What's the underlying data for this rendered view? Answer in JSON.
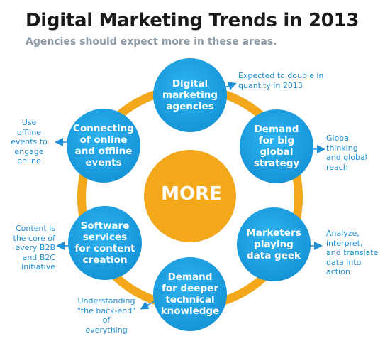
{
  "title": "Digital Marketing Trends in 2013",
  "subtitle": "Agencies should expect more in these areas.",
  "center_label": "MORE",
  "colors": {
    "ring": "#f3a81c",
    "center": "#f3a81c",
    "node": "#1ba3e6",
    "note_text": "#1f8fd6",
    "arrow": "#1f8fd6"
  },
  "nodes": [
    {
      "label": "Digital\nmarketing\nagencies",
      "note": "Expected to double in\nquantity in 2013"
    },
    {
      "label": "Demand\nfor big\nglobal\nstrategy",
      "note": "Global\nthinking\nand global\nreach"
    },
    {
      "label": "Marketers\nplaying\ndata geek",
      "note": "Analyze,\ninterpret,\nand translate\ndata into\naction"
    },
    {
      "label": "Demand\nfor deeper\ntechnical\nknowledge",
      "note": "Understanding\n\"the back-end\" of\neverything"
    },
    {
      "label": "Software\nservices\nfor content\ncreation",
      "note": "Content is\nthe core of\nevery B2B\nand B2C\ninitiative"
    },
    {
      "label": "Connecting\nof online\nand offline\nevents",
      "note": "Use\noffline\nevents to\nengage\nonline"
    }
  ]
}
